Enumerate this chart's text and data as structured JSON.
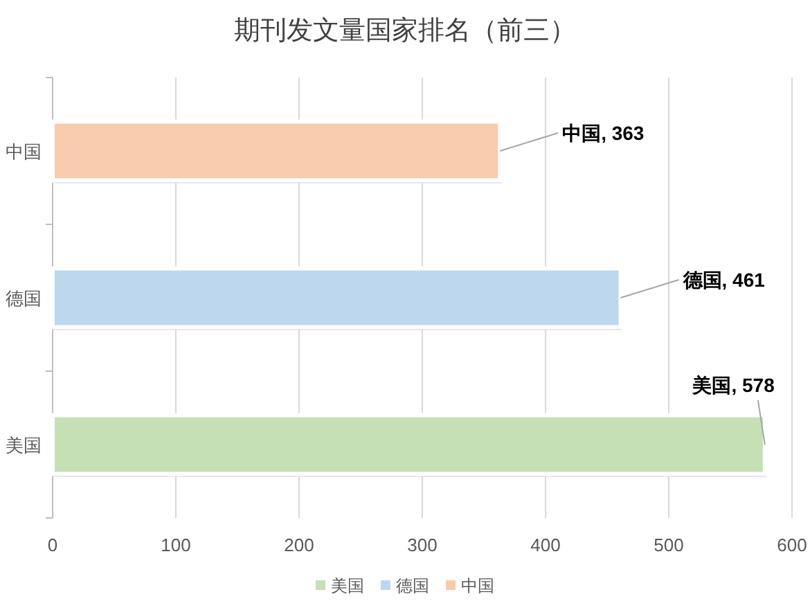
{
  "chart_data": {
    "type": "bar",
    "orientation": "horizontal",
    "stacked": true,
    "title": "期刊发文量国家排名（前三）",
    "categories": [
      "中国",
      "德国",
      "美国"
    ],
    "series": [
      {
        "name": "中国",
        "color": "#f8cbad",
        "values": [
          363,
          null,
          null
        ],
        "value_labels": [
          "中国, 363",
          null,
          null
        ]
      },
      {
        "name": "德国",
        "color": "#bdd7ee",
        "values": [
          null,
          461,
          null
        ],
        "value_labels": [
          null,
          "德国, 461",
          null
        ]
      },
      {
        "name": "美国",
        "color": "#c5e0b4",
        "values": [
          null,
          null,
          578
        ],
        "value_labels": [
          null,
          null,
          "美国, 578"
        ]
      }
    ],
    "xlim": [
      0,
      600
    ],
    "xticks": [
      0,
      100,
      200,
      300,
      400,
      500,
      600
    ],
    "grid": "x",
    "legend": "bottom"
  }
}
